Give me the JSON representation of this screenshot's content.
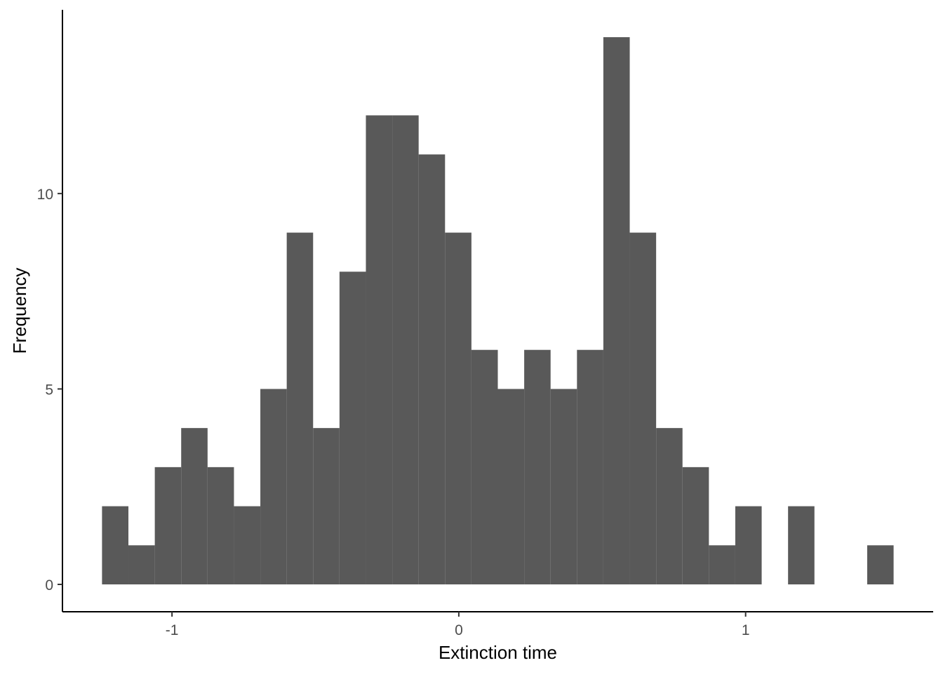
{
  "chart_data": {
    "type": "bar",
    "subtype": "histogram",
    "xlabel": "Extinction time",
    "ylabel": "Frequency",
    "bin_width": 0.092,
    "bins": [
      {
        "x0": -1.244,
        "x1": -1.152,
        "count": 2
      },
      {
        "x0": -1.152,
        "x1": -1.06,
        "count": 1
      },
      {
        "x0": -1.06,
        "x1": -0.968,
        "count": 3
      },
      {
        "x0": -0.968,
        "x1": -0.876,
        "count": 4
      },
      {
        "x0": -0.876,
        "x1": -0.784,
        "count": 3
      },
      {
        "x0": -0.784,
        "x1": -0.692,
        "count": 2
      },
      {
        "x0": -0.692,
        "x1": -0.6,
        "count": 5
      },
      {
        "x0": -0.6,
        "x1": -0.508,
        "count": 9
      },
      {
        "x0": -0.508,
        "x1": -0.416,
        "count": 4
      },
      {
        "x0": -0.416,
        "x1": -0.324,
        "count": 8
      },
      {
        "x0": -0.324,
        "x1": -0.232,
        "count": 12
      },
      {
        "x0": -0.232,
        "x1": -0.14,
        "count": 12
      },
      {
        "x0": -0.14,
        "x1": -0.048,
        "count": 11
      },
      {
        "x0": -0.048,
        "x1": 0.044,
        "count": 9
      },
      {
        "x0": 0.044,
        "x1": 0.136,
        "count": 6
      },
      {
        "x0": 0.136,
        "x1": 0.228,
        "count": 5
      },
      {
        "x0": 0.228,
        "x1": 0.32,
        "count": 6
      },
      {
        "x0": 0.32,
        "x1": 0.412,
        "count": 5
      },
      {
        "x0": 0.412,
        "x1": 0.504,
        "count": 6
      },
      {
        "x0": 0.504,
        "x1": 0.596,
        "count": 14
      },
      {
        "x0": 0.596,
        "x1": 0.688,
        "count": 9
      },
      {
        "x0": 0.688,
        "x1": 0.78,
        "count": 4
      },
      {
        "x0": 0.78,
        "x1": 0.872,
        "count": 3
      },
      {
        "x0": 0.872,
        "x1": 0.964,
        "count": 1
      },
      {
        "x0": 0.964,
        "x1": 1.056,
        "count": 2
      },
      {
        "x0": 1.056,
        "x1": 1.148,
        "count": 0
      },
      {
        "x0": 1.148,
        "x1": 1.24,
        "count": 2
      },
      {
        "x0": 1.24,
        "x1": 1.332,
        "count": 0
      },
      {
        "x0": 1.332,
        "x1": 1.424,
        "count": 0
      },
      {
        "x0": 1.424,
        "x1": 1.516,
        "count": 1
      }
    ],
    "x_ticks": [
      {
        "value": -1,
        "label": "-1"
      },
      {
        "value": 0,
        "label": "0"
      },
      {
        "value": 1,
        "label": "1"
      }
    ],
    "y_ticks": [
      {
        "value": 0,
        "label": "0"
      },
      {
        "value": 5,
        "label": "5"
      },
      {
        "value": 10,
        "label": "10"
      }
    ],
    "xlim": [
      -1.382,
      1.654
    ],
    "ylim": [
      -0.7,
      14.7
    ],
    "grid": false,
    "legend": "none",
    "bar_color": "#595959",
    "axis_color": "#000000",
    "tick_label_color": "#4d4d4d",
    "background": "#ffffff"
  }
}
